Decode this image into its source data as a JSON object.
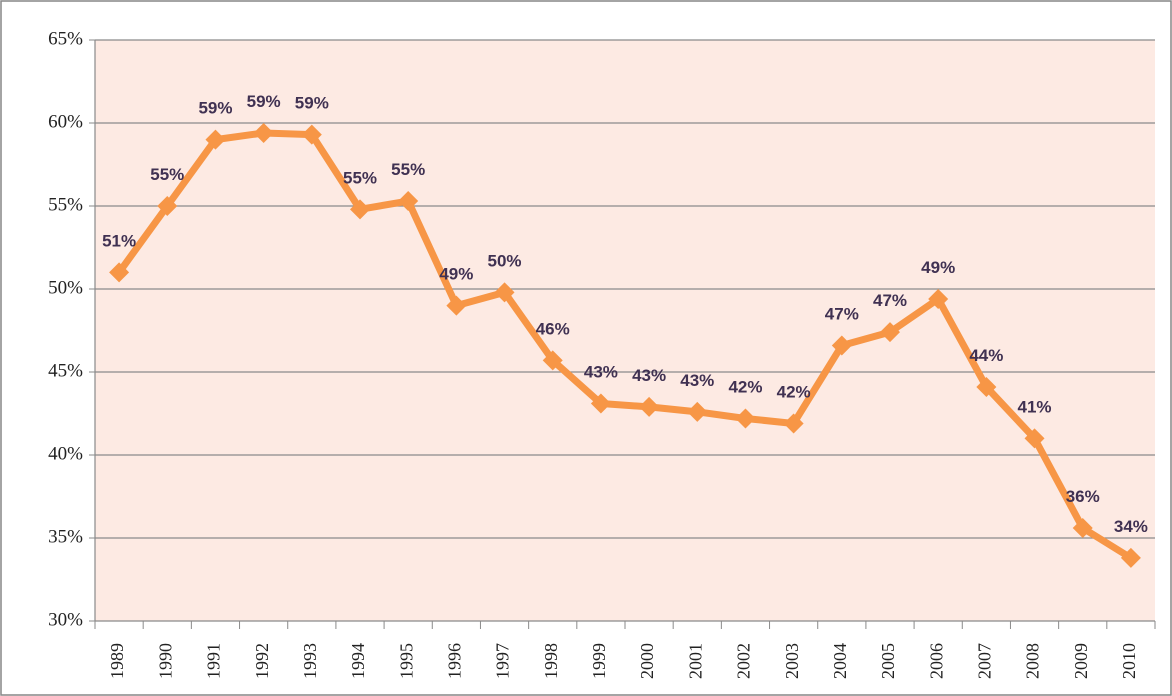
{
  "chart_data": {
    "type": "line",
    "categories": [
      "1989",
      "1990",
      "1991",
      "1992",
      "1993",
      "1994",
      "1995",
      "1996",
      "1997",
      "1998",
      "1999",
      "2000",
      "2001",
      "2002",
      "2003",
      "2004",
      "2005",
      "2006",
      "2007",
      "2008",
      "2009",
      "2010"
    ],
    "series": [
      {
        "color": "#f79646",
        "values": [
          51,
          55,
          59,
          59.4,
          59.3,
          54.8,
          55.3,
          49,
          49.8,
          45.7,
          43.1,
          42.9,
          42.6,
          42.2,
          41.9,
          46.6,
          47.4,
          49.4,
          44.1,
          41,
          35.6,
          33.8
        ],
        "value_labels": [
          "51%",
          "55%",
          "59%",
          "59%",
          "59%",
          "55%",
          "55%",
          "49%",
          "50%",
          "46%",
          "43%",
          "43%",
          "43%",
          "42%",
          "42%",
          "47%",
          "47%",
          "49%",
          "44%",
          "41%",
          "36%",
          "34%"
        ]
      }
    ],
    "ylim": [
      30,
      65
    ],
    "yticks": [
      {
        "value": 30,
        "label": "30%"
      },
      {
        "value": 35,
        "label": "35%"
      },
      {
        "value": 40,
        "label": "40%"
      },
      {
        "value": 45,
        "label": "45%"
      },
      {
        "value": 50,
        "label": "50%"
      },
      {
        "value": 55,
        "label": "55%"
      },
      {
        "value": 60,
        "label": "60%"
      },
      {
        "value": 65,
        "label": "65%"
      }
    ],
    "grid": true
  }
}
